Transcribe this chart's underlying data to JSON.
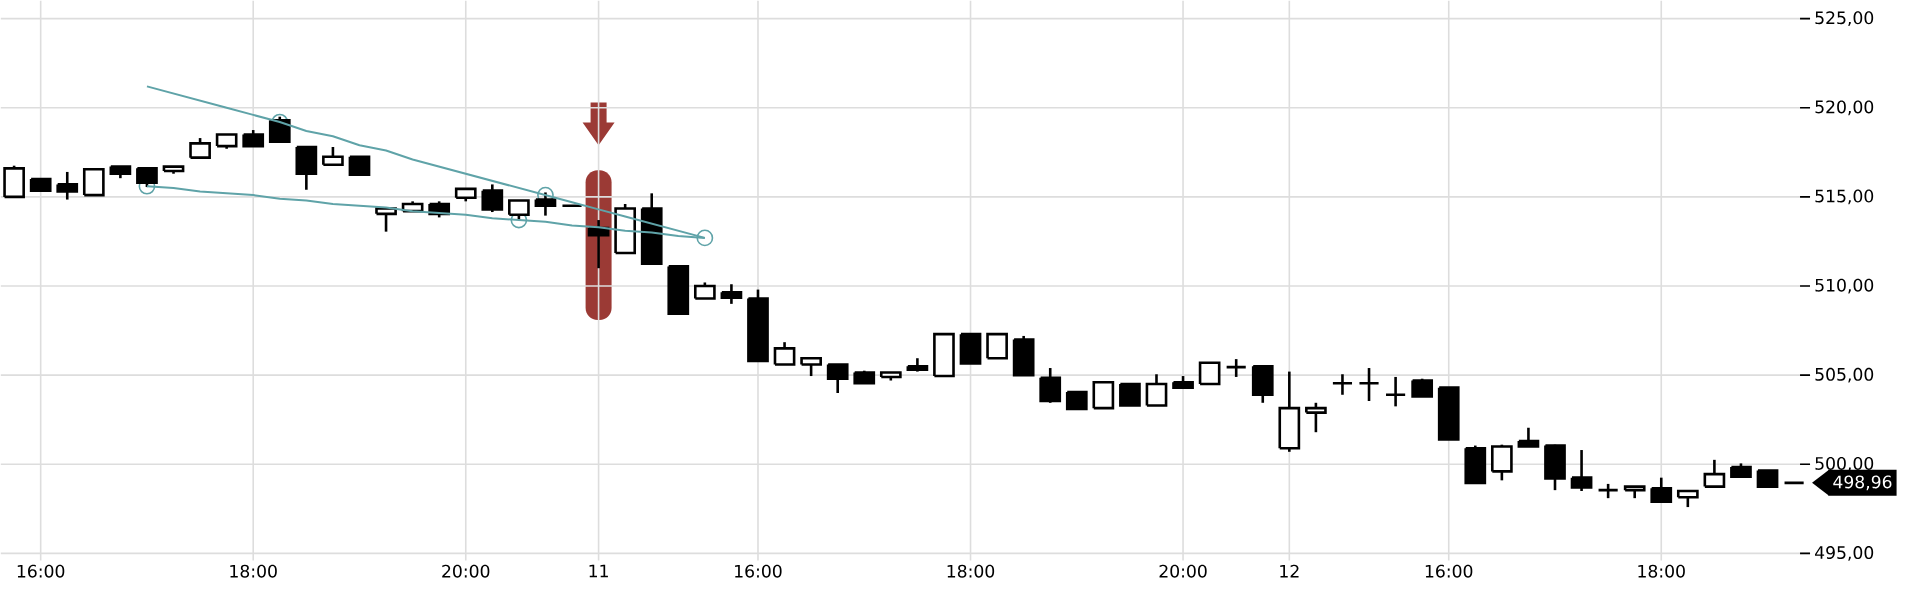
{
  "chart_data": {
    "type": "candlestick",
    "color": "#000000",
    "categories": [
      null,
      "16:00",
      null,
      null,
      null,
      null,
      null,
      null,
      null,
      "18:00",
      null,
      null,
      null,
      null,
      null,
      null,
      null,
      "20:00",
      null,
      null,
      null,
      null,
      "11",
      null,
      null,
      null,
      null,
      null,
      "16:00",
      null,
      null,
      null,
      null,
      null,
      null,
      null,
      "18:00",
      null,
      null,
      null,
      null,
      null,
      null,
      null,
      "20:00",
      null,
      null,
      null,
      "12",
      null,
      null,
      null,
      null,
      null,
      "16:00",
      null,
      null,
      null,
      null,
      null,
      null,
      null,
      "18:00",
      null,
      null,
      null,
      null,
      null
    ],
    "ohlc": [
      [
        515.0,
        516.75,
        515.0,
        516.6
      ],
      [
        516.0,
        516.0,
        515.35,
        515.35
      ],
      [
        515.7,
        516.4,
        514.85,
        515.3
      ],
      [
        515.1,
        516.55,
        515.1,
        516.55
      ],
      [
        516.7,
        516.7,
        516.05,
        516.3
      ],
      [
        516.6,
        516.6,
        515.55,
        515.8
      ],
      [
        516.45,
        516.7,
        516.3,
        516.7
      ],
      [
        517.2,
        518.3,
        517.2,
        518.0
      ],
      [
        517.85,
        518.5,
        517.7,
        518.5
      ],
      [
        518.5,
        518.75,
        517.85,
        517.85
      ],
      [
        519.3,
        519.5,
        518.1,
        518.1
      ],
      [
        517.8,
        517.8,
        515.4,
        516.3
      ],
      [
        516.8,
        517.8,
        516.8,
        517.25
      ],
      [
        517.25,
        517.25,
        516.25,
        516.25
      ],
      [
        514.05,
        514.35,
        513.05,
        514.35
      ],
      [
        514.2,
        514.75,
        514.2,
        514.6
      ],
      [
        514.6,
        514.75,
        513.85,
        514.05
      ],
      [
        514.95,
        515.45,
        514.75,
        515.45
      ],
      [
        515.35,
        515.7,
        514.15,
        514.3
      ],
      [
        514.0,
        514.8,
        513.7,
        514.8
      ],
      [
        514.85,
        515.25,
        513.95,
        514.5
      ],
      [
        514.5,
        514.5,
        514.5,
        514.5
      ],
      [
        513.25,
        513.7,
        511.0,
        512.85
      ],
      [
        511.85,
        514.6,
        511.85,
        514.35
      ],
      [
        514.35,
        515.2,
        511.25,
        511.25
      ],
      [
        511.1,
        511.1,
        508.45,
        508.45
      ],
      [
        509.3,
        510.2,
        509.3,
        510.0
      ],
      [
        509.65,
        510.1,
        509.0,
        509.35
      ],
      [
        509.3,
        509.8,
        505.8,
        505.8
      ],
      [
        505.6,
        506.85,
        505.6,
        506.5
      ],
      [
        505.6,
        505.95,
        504.95,
        505.95
      ],
      [
        505.6,
        505.6,
        504.0,
        504.8
      ],
      [
        505.15,
        505.25,
        504.55,
        504.55
      ],
      [
        504.9,
        505.15,
        504.7,
        505.15
      ],
      [
        505.5,
        505.95,
        505.2,
        505.3
      ],
      [
        504.95,
        507.3,
        504.95,
        507.3
      ],
      [
        507.3,
        507.3,
        505.65,
        505.65
      ],
      [
        505.95,
        507.3,
        505.95,
        507.3
      ],
      [
        507.0,
        507.2,
        505.0,
        505.0
      ],
      [
        504.85,
        505.4,
        503.45,
        503.55
      ],
      [
        504.05,
        504.05,
        503.1,
        503.1
      ],
      [
        503.15,
        504.6,
        503.15,
        504.6
      ],
      [
        504.5,
        504.5,
        503.3,
        503.3
      ],
      [
        503.3,
        505.05,
        503.3,
        504.5
      ],
      [
        504.6,
        504.95,
        504.3,
        504.3
      ],
      [
        504.5,
        505.7,
        504.5,
        505.7
      ],
      [
        505.45,
        505.9,
        504.9,
        505.45
      ],
      [
        505.5,
        505.5,
        503.45,
        503.9
      ],
      [
        500.9,
        505.2,
        500.7,
        503.15
      ],
      [
        502.9,
        503.45,
        501.8,
        503.15
      ],
      [
        504.55,
        505.05,
        503.9,
        504.55
      ],
      [
        504.55,
        505.4,
        503.55,
        504.55
      ],
      [
        503.9,
        504.9,
        503.25,
        503.9
      ],
      [
        504.7,
        504.8,
        503.8,
        503.8
      ],
      [
        504.3,
        504.3,
        501.4,
        501.4
      ],
      [
        500.9,
        501.05,
        498.95,
        498.95
      ],
      [
        499.6,
        501.1,
        499.1,
        501.0
      ],
      [
        501.3,
        502.05,
        501.0,
        501.0
      ],
      [
        501.05,
        501.1,
        498.55,
        499.2
      ],
      [
        499.25,
        500.8,
        498.5,
        498.7
      ],
      [
        498.55,
        498.9,
        498.1,
        498.55
      ],
      [
        498.55,
        498.75,
        498.1,
        498.75
      ],
      [
        498.65,
        499.25,
        497.9,
        497.9
      ],
      [
        498.15,
        498.5,
        497.6,
        498.5
      ],
      [
        498.75,
        500.25,
        498.75,
        499.45
      ],
      [
        499.85,
        500.05,
        499.3,
        499.3
      ],
      [
        499.65,
        499.65,
        498.75,
        498.75
      ],
      [
        498.96,
        498.96,
        498.96,
        498.96
      ]
    ],
    "series": [
      {
        "type": "line",
        "color": "#5fa3a8",
        "values": [
          null,
          null,
          null,
          null,
          null,
          521.2,
          520.8,
          520.4,
          520.0,
          519.6,
          519.2,
          518.7,
          518.4,
          517.9,
          517.6,
          517.1,
          516.7,
          516.3,
          515.9,
          515.5,
          515.1,
          514.7,
          514.3,
          513.9,
          513.5,
          513.1,
          512.7,
          null,
          null,
          null,
          null,
          null,
          null,
          null,
          null,
          null,
          null,
          null,
          null,
          null,
          null,
          null,
          null,
          null,
          null,
          null,
          null,
          null,
          null,
          null,
          null,
          null,
          null,
          null,
          null,
          null,
          null,
          null,
          null,
          null,
          null,
          null,
          null,
          null,
          null,
          null,
          null,
          null
        ]
      },
      {
        "type": "line",
        "color": "#5fa3a8",
        "values": [
          null,
          null,
          null,
          null,
          null,
          515.6,
          515.5,
          515.3,
          515.2,
          515.1,
          514.9,
          514.8,
          514.6,
          514.5,
          514.4,
          514.2,
          514.1,
          514.0,
          513.8,
          513.7,
          513.6,
          513.4,
          513.3,
          513.1,
          513.0,
          512.8,
          512.7,
          null,
          null,
          null,
          null,
          null,
          null,
          null,
          null,
          null,
          null,
          null,
          null,
          null,
          null,
          null,
          null,
          null,
          null,
          null,
          null,
          null,
          null,
          null,
          null,
          null,
          null,
          null,
          null,
          null,
          null,
          null,
          null,
          null,
          null,
          null,
          null,
          null,
          null,
          null,
          null,
          null
        ]
      },
      {
        "type": "scatter",
        "color": "#5fa3a8",
        "marker": "circle",
        "values": [
          null,
          null,
          null,
          null,
          null,
          515.6,
          null,
          null,
          null,
          null,
          519.2,
          null,
          null,
          null,
          null,
          null,
          null,
          null,
          null,
          513.7,
          515.1,
          null,
          null,
          null,
          null,
          null,
          512.7,
          null,
          null,
          null,
          null,
          null,
          null,
          null,
          null,
          null,
          null,
          null,
          null,
          null,
          null,
          null,
          null,
          null,
          null,
          null,
          null,
          null,
          null,
          null,
          null,
          null,
          null,
          null,
          null,
          null,
          null,
          null,
          null,
          null,
          null,
          null,
          null,
          null,
          null,
          null,
          null,
          null
        ]
      }
    ],
    "ylim": [
      494.6,
      526
    ],
    "yticks": [
      {
        "value": 495,
        "label": "495,00"
      },
      {
        "value": 500,
        "label": "500,00"
      },
      {
        "value": 505,
        "label": "505,00"
      },
      {
        "value": 510,
        "label": "510,00"
      },
      {
        "value": 515,
        "label": "515,00"
      },
      {
        "value": 520,
        "label": "520,00"
      },
      {
        "value": 525,
        "label": "525,00"
      }
    ],
    "grid": true,
    "annotations": [
      "498,96"
    ]
  }
}
